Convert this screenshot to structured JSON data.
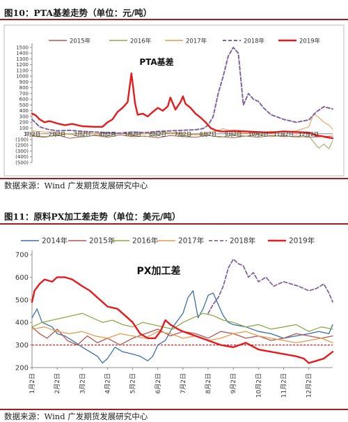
{
  "figures": [
    {
      "title": "图10：PTA基差走势（单位：元/吨）",
      "source": "数据来源：Wind 广发期货发展研究中心"
    },
    {
      "title": "图11：原料PX加工差走势（单位：美元/吨）",
      "source": "数据来源：Wind 广发期货发展研究中心"
    }
  ],
  "chart_data": [
    {
      "type": "line",
      "title": "PTA基差",
      "xlabel": "",
      "ylabel": "",
      "ylim": [
        -500,
        1500
      ],
      "yticks": [
        1500,
        1400,
        1300,
        1200,
        1100,
        1000,
        900,
        800,
        700,
        600,
        500,
        400,
        300,
        200,
        100,
        0,
        -100,
        -200,
        -300,
        -400,
        -500
      ],
      "ytick_labels": [
        "1500",
        "1400",
        "1300",
        "1200",
        "1100",
        "1000",
        "900",
        "800",
        "700",
        "600",
        "500",
        "400",
        "300",
        "200",
        "100",
        "0",
        "(100)",
        "(200)",
        "(300)",
        "(400)",
        "(500)"
      ],
      "xlim": [
        1,
        12.95
      ],
      "xticks": [
        1,
        2,
        3,
        4,
        5,
        6,
        7,
        8,
        9,
        10,
        11,
        12
      ],
      "xtick_labels": [
        "1月2日",
        "2月2日",
        "3月2日",
        "4月2日",
        "5月2日",
        "6月2日",
        "7月2日",
        "8月2日",
        "9月2日",
        "10月2日",
        "11月2日",
        "12月2日"
      ],
      "legend_position": "top",
      "grid": false,
      "series": [
        {
          "name": "2015年",
          "color": "#b85450",
          "dash": "solid",
          "width": 1,
          "x": [
            1,
            1.5,
            2,
            2.5,
            3,
            3.5,
            4,
            4.5,
            5,
            5.5,
            6,
            6.5,
            7,
            7.5,
            8,
            8.5,
            9,
            9.5,
            10,
            10.5,
            11,
            11.5,
            12,
            12.5,
            12.95
          ],
          "y": [
            -40,
            -60,
            -20,
            -80,
            -50,
            -30,
            -60,
            -20,
            -50,
            -40,
            -70,
            -30,
            -50,
            -60,
            -30,
            -50,
            -70,
            -40,
            -60,
            -30,
            -50,
            -40,
            -60,
            -50,
            -40
          ]
        },
        {
          "name": "2016年",
          "color": "#8aab47",
          "dash": "solid",
          "width": 1,
          "x": [
            1,
            1.5,
            2,
            2.5,
            3,
            3.5,
            4,
            4.5,
            5,
            5.5,
            6,
            6.5,
            7,
            7.5,
            8,
            8.5,
            9,
            9.5,
            10,
            10.5,
            11,
            11.5,
            12,
            12.2,
            12.4,
            12.6,
            12.8,
            12.95
          ],
          "y": [
            -20,
            -50,
            -30,
            0,
            -60,
            -20,
            -40,
            10,
            -30,
            -50,
            -20,
            20,
            -40,
            -10,
            -30,
            -60,
            -20,
            -40,
            -10,
            -50,
            -30,
            -60,
            -40,
            -150,
            -250,
            -180,
            -260,
            -120
          ]
        },
        {
          "name": "2017年",
          "color": "#e89b4a",
          "dash": "solid",
          "width": 1,
          "x": [
            1,
            1.5,
            2,
            2.5,
            3,
            3.5,
            4,
            4.5,
            5,
            5.5,
            6,
            6.5,
            7,
            7.5,
            8,
            8.3,
            8.6,
            9,
            9.5,
            10,
            10.5,
            11,
            11.5,
            12,
            12.2,
            12.4,
            12.6,
            12.8,
            12.95
          ],
          "y": [
            50,
            30,
            20,
            -10,
            10,
            0,
            20,
            10,
            -20,
            0,
            30,
            20,
            10,
            -20,
            20,
            40,
            90,
            30,
            10,
            20,
            40,
            30,
            50,
            120,
            350,
            280,
            200,
            150,
            80
          ]
        },
        {
          "name": "2018年",
          "color": "#8064a2",
          "dash": "dash",
          "width": 2,
          "x": [
            1,
            1.3,
            1.6,
            2,
            2.5,
            3,
            3.5,
            4,
            4.5,
            5,
            5.5,
            6,
            6.5,
            7,
            7.5,
            7.8,
            8,
            8.2,
            8.4,
            8.6,
            8.8,
            9,
            9.2,
            9.4,
            9.6,
            9.8,
            10,
            10.2,
            10.5,
            11,
            11.5,
            12,
            12.3,
            12.6,
            12.95
          ],
          "y": [
            250,
            120,
            80,
            50,
            60,
            40,
            30,
            20,
            10,
            30,
            20,
            40,
            50,
            60,
            70,
            90,
            150,
            300,
            700,
            1000,
            1350,
            1500,
            1400,
            500,
            700,
            600,
            560,
            450,
            330,
            250,
            200,
            240,
            380,
            470,
            430
          ]
        },
        {
          "name": "2019年",
          "color": "#e8191b",
          "dash": "solid",
          "width": 2.4,
          "x": [
            1,
            1.15,
            1.3,
            1.5,
            1.7,
            2,
            2.3,
            2.6,
            3,
            3.5,
            3.8,
            4,
            4.2,
            4.4,
            4.6,
            4.8,
            4.95,
            5.1,
            5.2,
            5.4,
            5.6,
            5.8,
            6,
            6.2,
            6.4,
            6.5,
            6.7,
            6.9,
            7,
            7.1,
            7.3,
            7.5,
            7.7,
            7.9,
            8.1,
            8.3,
            8.5,
            8.7,
            9,
            9.5,
            10,
            10.5,
            11,
            11.5,
            12,
            12.3,
            12.5,
            12.7,
            12.95
          ],
          "y": [
            350,
            320,
            250,
            200,
            220,
            180,
            150,
            170,
            130,
            120,
            120,
            200,
            250,
            380,
            450,
            550,
            1050,
            520,
            330,
            350,
            300,
            380,
            450,
            400,
            480,
            630,
            420,
            550,
            650,
            520,
            450,
            350,
            280,
            200,
            100,
            60,
            40,
            40,
            50,
            40,
            30,
            20,
            40,
            30,
            20,
            -30,
            -40,
            -60,
            -80
          ]
        }
      ]
    },
    {
      "type": "line",
      "title": "PX加工差",
      "xlabel": "",
      "ylabel": "",
      "ylim": [
        200,
        700
      ],
      "yticks": [
        700,
        600,
        500,
        400,
        300,
        200
      ],
      "ytick_labels": [
        "700",
        "600",
        "500",
        "400",
        "300",
        "200"
      ],
      "xlim": [
        1,
        12.95
      ],
      "xticks": [
        1,
        2,
        3,
        4,
        5,
        6,
        7,
        8,
        9,
        10,
        11,
        12
      ],
      "xtick_labels": [
        "1月2日",
        "2月2日",
        "3月2日",
        "4月2日",
        "5月2日",
        "6月2日",
        "7月2日",
        "8月2日",
        "9月2日",
        "10月2日",
        "11月2日",
        "12月2日"
      ],
      "reference_line": {
        "y": 300,
        "color": "#e8191b",
        "dash": "dash"
      },
      "legend_position": "top",
      "grid": false,
      "series": [
        {
          "name": "2014年",
          "color": "#3a6ea8",
          "dash": "solid",
          "width": 1.3,
          "x": [
            1,
            1.2,
            1.4,
            1.6,
            1.8,
            2,
            2.3,
            2.6,
            3,
            3.3,
            3.6,
            3.8,
            4,
            4.3,
            4.6,
            5,
            5.3,
            5.6,
            5.8,
            6,
            6.3,
            6.6,
            7,
            7.2,
            7.4,
            7.6,
            7.8,
            8,
            8.2,
            8.4,
            8.6,
            8.8,
            9,
            9.5,
            10,
            10.5,
            11,
            11.5,
            12,
            12.4,
            12.8,
            12.95
          ],
          "y": [
            420,
            460,
            400,
            390,
            380,
            350,
            340,
            320,
            290,
            270,
            250,
            220,
            240,
            290,
            270,
            260,
            250,
            230,
            250,
            300,
            320,
            380,
            440,
            510,
            540,
            420,
            460,
            520,
            530,
            480,
            430,
            400,
            390,
            380,
            360,
            350,
            330,
            340,
            350,
            360,
            350,
            390
          ]
        },
        {
          "name": "2015年",
          "color": "#b85450",
          "dash": "solid",
          "width": 1.3,
          "x": [
            1,
            1.3,
            1.6,
            2,
            2.4,
            2.8,
            3.2,
            3.6,
            4,
            4.5,
            5,
            5.5,
            6,
            6.5,
            7,
            7.5,
            8,
            8.5,
            9,
            9.5,
            10,
            10.5,
            11,
            11.5,
            12,
            12.5,
            12.95
          ],
          "y": [
            380,
            350,
            330,
            370,
            320,
            300,
            340,
            310,
            330,
            300,
            330,
            350,
            370,
            340,
            360,
            350,
            330,
            360,
            350,
            330,
            340,
            320,
            330,
            350,
            340,
            330,
            340
          ]
        },
        {
          "name": "2016年",
          "color": "#8aab47",
          "dash": "solid",
          "width": 1.3,
          "x": [
            1,
            1.4,
            1.8,
            2.2,
            2.6,
            3,
            3.4,
            3.8,
            4.2,
            4.6,
            5,
            5.4,
            5.8,
            6.2,
            6.6,
            7,
            7.4,
            7.8,
            8.2,
            8.6,
            9,
            9.5,
            10,
            10.5,
            11,
            11.5,
            12,
            12.5,
            12.95
          ],
          "y": [
            380,
            400,
            410,
            420,
            430,
            440,
            420,
            400,
            410,
            390,
            380,
            400,
            390,
            380,
            370,
            400,
            420,
            440,
            430,
            410,
            400,
            380,
            390,
            370,
            380,
            390,
            360,
            380,
            370
          ]
        },
        {
          "name": "2017年",
          "color": "#e89b4a",
          "dash": "solid",
          "width": 1.3,
          "x": [
            1,
            1.5,
            2,
            2.5,
            3,
            3.5,
            4,
            4.5,
            5,
            5.5,
            6,
            6.5,
            7,
            7.5,
            8,
            8.5,
            9,
            9.5,
            10,
            10.5,
            11,
            11.5,
            12,
            12.5,
            12.95
          ],
          "y": [
            370,
            380,
            360,
            350,
            360,
            340,
            330,
            350,
            340,
            330,
            360,
            350,
            330,
            340,
            320,
            330,
            350,
            360,
            340,
            330,
            320,
            310,
            320,
            330,
            310
          ]
        },
        {
          "name": "2018年",
          "color": "#8064a2",
          "dash": "dash",
          "width": 1.8,
          "x": [
            8,
            8.2,
            8.4,
            8.6,
            8.8,
            9,
            9.2,
            9.4,
            9.6,
            9.8,
            10,
            10.3,
            10.6,
            11,
            11.3,
            11.6,
            12,
            12.3,
            12.6,
            12.8,
            12.95
          ],
          "y": [
            440,
            480,
            510,
            560,
            640,
            680,
            660,
            650,
            600,
            620,
            580,
            600,
            560,
            580,
            570,
            560,
            540,
            550,
            570,
            530,
            490
          ]
        },
        {
          "name": "2019年",
          "color": "#e8191b",
          "dash": "solid",
          "width": 2.4,
          "x": [
            1,
            1.1,
            1.3,
            1.5,
            1.8,
            2,
            2.3,
            2.6,
            3,
            3.3,
            3.6,
            4,
            4.4,
            4.8,
            5,
            5.3,
            5.6,
            5.9,
            6.1,
            6.3,
            6.5,
            6.8,
            7,
            7.5,
            8,
            8.5,
            9,
            9.5,
            10,
            10.5,
            11,
            11.5,
            11.8,
            12,
            12.3,
            12.6,
            12.95
          ],
          "y": [
            490,
            540,
            570,
            590,
            580,
            600,
            600,
            590,
            560,
            540,
            510,
            470,
            460,
            420,
            400,
            350,
            330,
            330,
            360,
            410,
            390,
            370,
            360,
            340,
            320,
            300,
            290,
            310,
            280,
            270,
            260,
            250,
            240,
            220,
            230,
            240,
            270
          ]
        }
      ]
    }
  ]
}
